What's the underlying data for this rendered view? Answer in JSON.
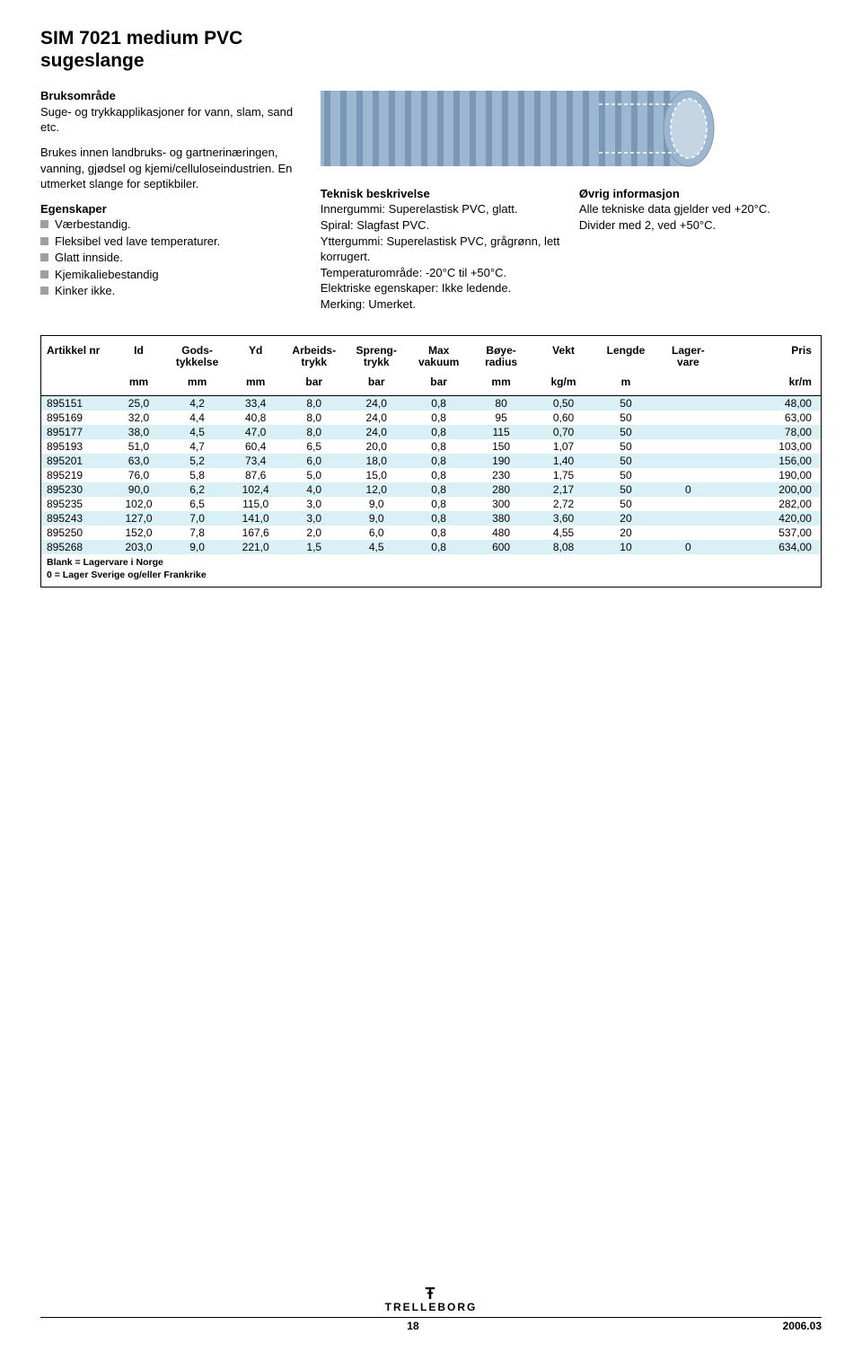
{
  "title_line1": "SIM 7021 medium PVC",
  "title_line2": "sugeslange",
  "left": {
    "h1": "Bruksområde",
    "p1": "Suge- og trykkapplikasjoner for vann, slam, sand etc.",
    "p2": "Brukes innen landbruks- og gartnerinæringen, vanning, gjødsel og kjemi/celluloseindustrien. En utmerket slange for septikbiler.",
    "h2": "Egenskaper",
    "b1": "Værbestandig.",
    "b2": "Fleksibel ved lave temperaturer.",
    "b3": "Glatt innside.",
    "b4": "Kjemikaliebestandig",
    "b5": "Kinker ikke."
  },
  "tech": {
    "h": "Teknisk beskrivelse",
    "l1": "Innergummi: Superelastisk PVC, glatt.",
    "l2": "Spiral: Slagfast PVC.",
    "l3": "Yttergummi: Superelastisk PVC, grågrønn, lett korrugert.",
    "l4": "Temperaturområde: -20°C til +50°C.",
    "l5": "Elektriske egenskaper: Ikke ledende.",
    "l6": "Merking: Umerket."
  },
  "info": {
    "h": "Øvrig informasjon",
    "l1": "Alle tekniske data gjelder ved +20°C.",
    "l2": "Divider med 2, ved +50°C."
  },
  "illustration": {
    "body_color": "#9db7d1",
    "rib_color": "#7a97b5",
    "inner_color": "#c5d5e4",
    "dash_color": "#ffffff"
  },
  "table": {
    "row_alt_bg": "#d9f0f7",
    "headers": [
      "Artikkel nr",
      "Id",
      "Gods-\ntykkelse",
      "Yd",
      "Arbeids-\ntrykk",
      "Spreng-\ntrykk",
      "Max\nvakuum",
      "Bøye-\nradius",
      "Vekt",
      "Lengde",
      "Lager-\nvare",
      "Pris"
    ],
    "units": [
      "",
      "mm",
      "mm",
      "mm",
      "bar",
      "bar",
      "bar",
      "mm",
      "kg/m",
      "m",
      "",
      "kr/m"
    ],
    "rows": [
      [
        "895151",
        "25,0",
        "4,2",
        "33,4",
        "8,0",
        "24,0",
        "0,8",
        "80",
        "0,50",
        "50",
        "",
        "48,00"
      ],
      [
        "895169",
        "32,0",
        "4,4",
        "40,8",
        "8,0",
        "24,0",
        "0,8",
        "95",
        "0,60",
        "50",
        "",
        "63,00"
      ],
      [
        "895177",
        "38,0",
        "4,5",
        "47,0",
        "8,0",
        "24,0",
        "0,8",
        "115",
        "0,70",
        "50",
        "",
        "78,00"
      ],
      [
        "895193",
        "51,0",
        "4,7",
        "60,4",
        "6,5",
        "20,0",
        "0,8",
        "150",
        "1,07",
        "50",
        "",
        "103,00"
      ],
      [
        "895201",
        "63,0",
        "5,2",
        "73,4",
        "6,0",
        "18,0",
        "0,8",
        "190",
        "1,40",
        "50",
        "",
        "156,00"
      ],
      [
        "895219",
        "76,0",
        "5,8",
        "87,6",
        "5,0",
        "15,0",
        "0,8",
        "230",
        "1,75",
        "50",
        "",
        "190,00"
      ],
      [
        "895230",
        "90,0",
        "6,2",
        "102,4",
        "4,0",
        "12,0",
        "0,8",
        "280",
        "2,17",
        "50",
        "0",
        "200,00"
      ],
      [
        "895235",
        "102,0",
        "6,5",
        "115,0",
        "3,0",
        "9,0",
        "0,8",
        "300",
        "2,72",
        "50",
        "",
        "282,00"
      ],
      [
        "895243",
        "127,0",
        "7,0",
        "141,0",
        "3,0",
        "9,0",
        "0,8",
        "380",
        "3,60",
        "20",
        "",
        "420,00"
      ],
      [
        "895250",
        "152,0",
        "7,8",
        "167,6",
        "2,0",
        "6,0",
        "0,8",
        "480",
        "4,55",
        "20",
        "",
        "537,00"
      ],
      [
        "895268",
        "203,0",
        "9,0",
        "221,0",
        "1,5",
        "4,5",
        "0,8",
        "600",
        "8,08",
        "10",
        "0",
        "634,00"
      ]
    ],
    "footer1": "Blank = Lagervare i Norge",
    "footer2": "0 = Lager Sverige og/eller Frankrike"
  },
  "footer": {
    "brand": "TRELLEBORG",
    "page": "18",
    "date": "2006.03"
  }
}
